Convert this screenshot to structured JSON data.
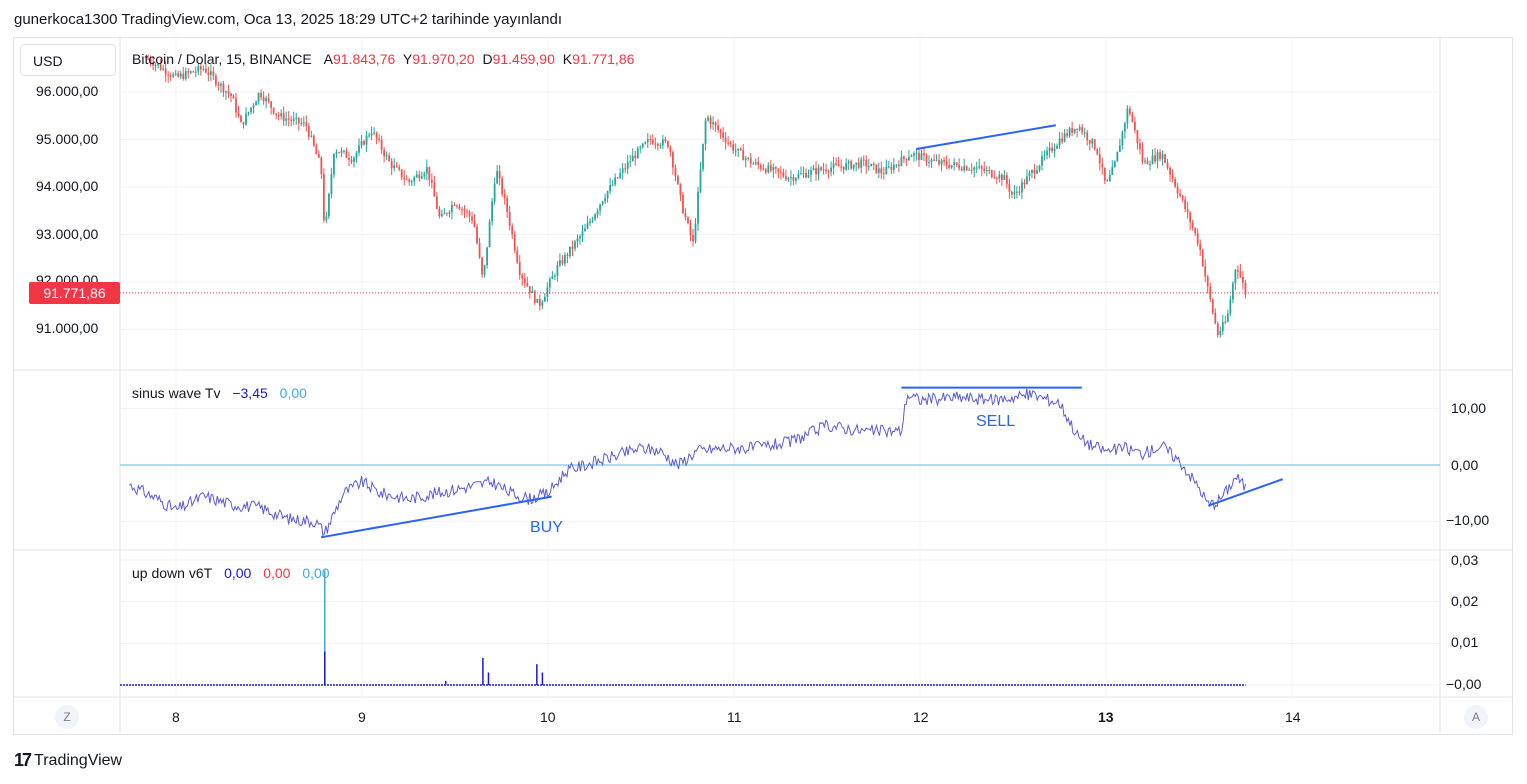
{
  "header": {
    "publish_line": "gunerkoca1300 TradingView.com, Oca 13, 2025 18:29 UTC+2 tarihinde yayınlandı"
  },
  "currency_button": "USD",
  "main_legend": {
    "title": "Bitcoin / Dolar, 15, BINANCE",
    "open_label": "A",
    "open_value": "91.843,76",
    "high_label": "Y",
    "high_value": "91.970,20",
    "low_label": "D",
    "low_value": "91.459,90",
    "close_label": "K",
    "close_value": "91.771,86"
  },
  "last_price_tag": "91.771,86",
  "sinus_legend": {
    "name": "sinus wave Tv",
    "value1": "−3,45",
    "value2": "0,00"
  },
  "updown_legend": {
    "name": "up down v6T",
    "value1": "0,00",
    "value2": "0,00",
    "value3": "0,00"
  },
  "annotations": {
    "buy": "BUY",
    "sell": "SELL"
  },
  "time_axis": {
    "labels": [
      "8",
      "9",
      "10",
      "11",
      "12",
      "13",
      "14"
    ],
    "left_button": "Z",
    "right_button": "A"
  },
  "footer": {
    "brand": "TradingView",
    "logo_glyph": "17"
  },
  "colors": {
    "up": "#26a69a",
    "down": "#ef5350",
    "sinus_line": "#5b5bd6",
    "zero_line": "#7ec8e3",
    "trendline": "#2962ff",
    "price_line": "#f23645"
  },
  "chart_data": [
    {
      "type": "candlestick",
      "title": "Bitcoin / Dolar, 15, BINANCE",
      "y_ticks": [
        "96.000,00",
        "95.000,00",
        "94.000,00",
        "93.000,00",
        "92.000,00",
        "91.000,00"
      ],
      "y_tick_values": [
        96000,
        95000,
        94000,
        93000,
        92000,
        91000
      ],
      "x_ticks": [
        "8",
        "9",
        "10",
        "11",
        "12",
        "13",
        "14"
      ],
      "ylim": [
        90300,
        97000
      ],
      "last_price": 91771.86,
      "path_close": [
        [
          7.85,
          96700
        ],
        [
          8.0,
          96300
        ],
        [
          8.15,
          96500
        ],
        [
          8.3,
          95900
        ],
        [
          8.35,
          95300
        ],
        [
          8.45,
          96000
        ],
        [
          8.55,
          95500
        ],
        [
          8.7,
          95300
        ],
        [
          8.78,
          94400
        ],
        [
          8.8,
          93000
        ],
        [
          8.85,
          94800
        ],
        [
          8.95,
          94600
        ],
        [
          9.05,
          95200
        ],
        [
          9.15,
          94500
        ],
        [
          9.25,
          94100
        ],
        [
          9.35,
          94400
        ],
        [
          9.42,
          93300
        ],
        [
          9.5,
          93700
        ],
        [
          9.6,
          93300
        ],
        [
          9.65,
          92000
        ],
        [
          9.72,
          94400
        ],
        [
          9.78,
          93500
        ],
        [
          9.85,
          92200
        ],
        [
          9.95,
          91500
        ],
        [
          10.05,
          92300
        ],
        [
          10.2,
          93100
        ],
        [
          10.3,
          93800
        ],
        [
          10.45,
          94600
        ],
        [
          10.55,
          95000
        ],
        [
          10.65,
          94900
        ],
        [
          10.72,
          93600
        ],
        [
          10.78,
          92800
        ],
        [
          10.85,
          95500
        ],
        [
          11.0,
          94800
        ],
        [
          11.1,
          94500
        ],
        [
          11.3,
          94200
        ],
        [
          11.5,
          94400
        ],
        [
          11.7,
          94500
        ],
        [
          11.8,
          94300
        ],
        [
          11.95,
          94700
        ],
        [
          12.1,
          94500
        ],
        [
          12.3,
          94400
        ],
        [
          12.45,
          94200
        ],
        [
          12.5,
          93800
        ],
        [
          12.6,
          94300
        ],
        [
          12.75,
          95000
        ],
        [
          12.85,
          95300
        ],
        [
          12.95,
          94800
        ],
        [
          13.0,
          94000
        ],
        [
          13.05,
          94500
        ],
        [
          13.12,
          95700
        ],
        [
          13.2,
          94500
        ],
        [
          13.3,
          94700
        ],
        [
          13.4,
          93800
        ],
        [
          13.5,
          92800
        ],
        [
          13.55,
          91800
        ],
        [
          13.6,
          90900
        ],
        [
          13.65,
          91200
        ],
        [
          13.7,
          92400
        ],
        [
          13.75,
          91772
        ]
      ],
      "trendline": {
        "from": [
          11.98,
          94800
        ],
        "to": [
          12.73,
          95300
        ]
      }
    },
    {
      "type": "line",
      "name": "sinus wave Tv",
      "y_ticks": [
        "10,00",
        "0,00",
        "−10,00"
      ],
      "y_tick_values": [
        10,
        0,
        -10
      ],
      "ylim": [
        -15,
        14
      ],
      "zero_line": 0,
      "x": [
        7.75,
        7.9,
        8.0,
        8.15,
        8.3,
        8.45,
        8.6,
        8.75,
        8.8,
        8.9,
        9.0,
        9.1,
        9.25,
        9.4,
        9.55,
        9.7,
        9.8,
        9.9,
        10.0,
        10.1,
        10.2,
        10.35,
        10.5,
        10.6,
        10.7,
        10.8,
        10.95,
        11.1,
        11.3,
        11.5,
        11.7,
        11.9,
        11.93,
        12.0,
        12.2,
        12.4,
        12.6,
        12.75,
        12.85,
        12.92,
        13.0,
        13.1,
        13.2,
        13.3,
        13.4,
        13.5,
        13.55,
        13.6,
        13.65,
        13.7,
        13.75
      ],
      "values": [
        -3.5,
        -6,
        -8,
        -5.5,
        -7,
        -7.5,
        -9.5,
        -10,
        -12,
        -5,
        -3,
        -5,
        -6,
        -5,
        -4,
        -3,
        -5,
        -6,
        -5,
        -1,
        0,
        1.5,
        3,
        2.5,
        0,
        2.5,
        3,
        3,
        4,
        7,
        6,
        6,
        12.5,
        11.5,
        12,
        11.5,
        12.5,
        11,
        5,
        3.5,
        2.5,
        3,
        2,
        3.5,
        0.5,
        -4,
        -7,
        -6.5,
        -4.5,
        -2,
        -4
      ],
      "annotations": [
        {
          "text": "BUY",
          "x": 9.9,
          "y": -11
        },
        {
          "text": "SELL",
          "x": 12.4,
          "y": 7.5
        }
      ],
      "trendlines": [
        {
          "from": [
            8.78,
            -12.8
          ],
          "to": [
            10.02,
            -5.6
          ]
        },
        {
          "from": [
            11.9,
            13.7
          ],
          "to": [
            12.87,
            13.7
          ]
        },
        {
          "from": [
            13.55,
            -7.2
          ],
          "to": [
            13.95,
            -2.5
          ]
        }
      ]
    },
    {
      "type": "bar",
      "name": "up down v6T",
      "y_ticks": [
        "0,03",
        "0,02",
        "0,01",
        "−0,00"
      ],
      "y_tick_values": [
        0.03,
        0.02,
        0.01,
        0
      ],
      "ylim": [
        -0.001,
        0.031
      ],
      "spikes": [
        {
          "x": 8.8,
          "value": 0.0275
        },
        {
          "x": 8.8,
          "value": 0.008
        },
        {
          "x": 9.65,
          "value": 0.0065
        },
        {
          "x": 9.68,
          "value": 0.003
        },
        {
          "x": 9.94,
          "value": 0.005
        },
        {
          "x": 9.97,
          "value": 0.003
        },
        {
          "x": 9.45,
          "value": 0.001
        }
      ]
    }
  ]
}
